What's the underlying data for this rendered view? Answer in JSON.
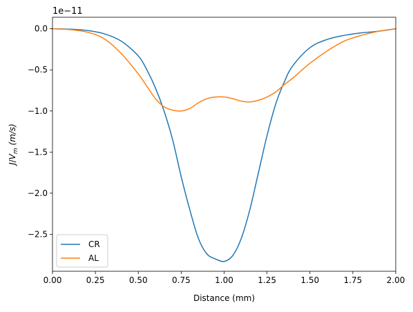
{
  "chart_data": {
    "type": "line",
    "title": "",
    "xlabel": "Distance (mm)",
    "ylabel": "J/V_m (m/s)",
    "ylabel_parts": {
      "J": "J",
      "slash": "/",
      "V": "V",
      "sub": "m",
      "unit": " (m/s)"
    },
    "offset_text": "1e−11",
    "xlim": [
      0,
      2
    ],
    "ylim": [
      -2.95,
      0.14
    ],
    "xticks": [
      0,
      0.25,
      0.5,
      0.75,
      1.0,
      1.25,
      1.5,
      1.75,
      2.0
    ],
    "xtick_labels": [
      "0.00",
      "0.25",
      "0.50",
      "0.75",
      "1.00",
      "1.25",
      "1.50",
      "1.75",
      "2.00"
    ],
    "yticks": [
      0,
      -0.5,
      -1.0,
      -1.5,
      -2.0,
      -2.5
    ],
    "ytick_labels": [
      "0.0",
      "−0.5",
      "−1.0",
      "−1.5",
      "−2.0",
      "−2.5"
    ],
    "grid": false,
    "legend_position": "lower-left",
    "series": [
      {
        "name": "CR",
        "color": "#1f77b4",
        "x": [
          0.0,
          0.1,
          0.2,
          0.3,
          0.4,
          0.5,
          0.55,
          0.6,
          0.65,
          0.7,
          0.75,
          0.8,
          0.85,
          0.9,
          0.95,
          1.0,
          1.05,
          1.1,
          1.15,
          1.2,
          1.25,
          1.3,
          1.35,
          1.4,
          1.5,
          1.6,
          1.7,
          1.8,
          1.9,
          2.0
        ],
        "values": [
          0.0,
          -0.005,
          -0.02,
          -0.06,
          -0.15,
          -0.33,
          -0.5,
          -0.72,
          -1.0,
          -1.35,
          -1.8,
          -2.2,
          -2.55,
          -2.74,
          -2.8,
          -2.83,
          -2.76,
          -2.55,
          -2.2,
          -1.75,
          -1.3,
          -0.92,
          -0.65,
          -0.45,
          -0.23,
          -0.13,
          -0.08,
          -0.05,
          -0.03,
          0.0
        ]
      },
      {
        "name": "AL",
        "color": "#ff7f0e",
        "x": [
          0.0,
          0.1,
          0.2,
          0.3,
          0.4,
          0.5,
          0.55,
          0.6,
          0.65,
          0.7,
          0.75,
          0.8,
          0.85,
          0.9,
          0.95,
          1.0,
          1.05,
          1.1,
          1.15,
          1.2,
          1.25,
          1.3,
          1.35,
          1.4,
          1.5,
          1.6,
          1.7,
          1.8,
          1.9,
          2.0
        ],
        "values": [
          0.0,
          -0.01,
          -0.04,
          -0.12,
          -0.3,
          -0.55,
          -0.7,
          -0.85,
          -0.95,
          -0.99,
          -1.0,
          -0.97,
          -0.9,
          -0.85,
          -0.83,
          -0.83,
          -0.85,
          -0.88,
          -0.89,
          -0.87,
          -0.83,
          -0.77,
          -0.68,
          -0.6,
          -0.42,
          -0.27,
          -0.15,
          -0.08,
          -0.03,
          0.0
        ]
      }
    ]
  }
}
